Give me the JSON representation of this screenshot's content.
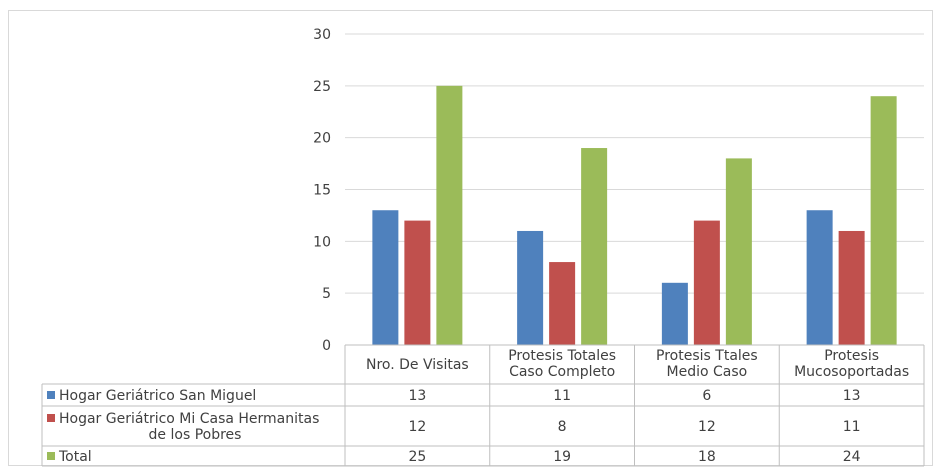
{
  "chart_data": {
    "type": "bar",
    "title": "",
    "xlabel": "",
    "ylabel": "",
    "ylim": [
      0,
      30
    ],
    "yticks": [
      0,
      5,
      10,
      15,
      20,
      25,
      30
    ],
    "grid": true,
    "legend": "data-table-left",
    "categories": [
      [
        "Nro. De Visitas"
      ],
      [
        "Protesis Totales",
        "Caso Completo"
      ],
      [
        "Protesis Ttales",
        "Medio Caso"
      ],
      [
        "Protesis",
        "Mucosoportadas"
      ]
    ],
    "series": [
      {
        "name": [
          "Hogar Geriátrico San Miguel"
        ],
        "color": "#4f81bd",
        "values": [
          13,
          11,
          6,
          13
        ]
      },
      {
        "name": [
          "Hogar Geriátrico Mi Casa Hermanitas",
          "de los Pobres"
        ],
        "color": "#c0504d",
        "values": [
          12,
          8,
          12,
          11
        ]
      },
      {
        "name": [
          "Total"
        ],
        "color": "#9bbb59",
        "values": [
          25,
          19,
          18,
          24
        ]
      }
    ]
  }
}
